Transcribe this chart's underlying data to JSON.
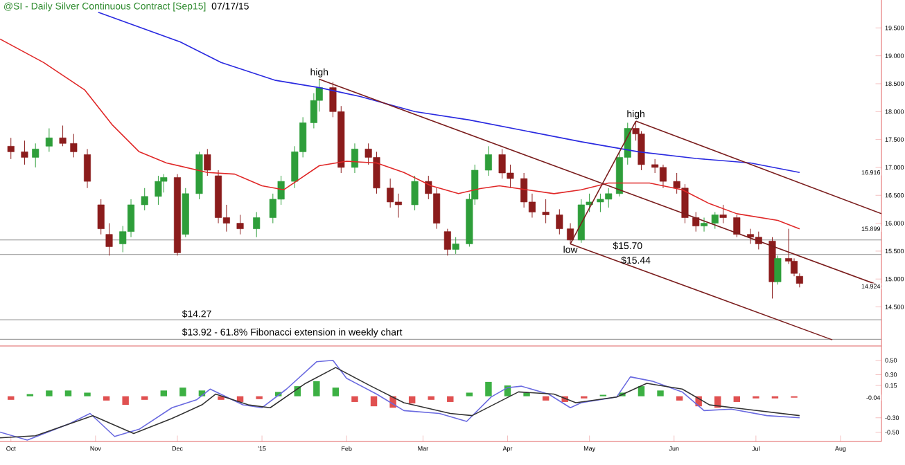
{
  "chart_data": [
    {
      "type": "candlestick",
      "title": "@SI - Daily  Silver Continuous Contract [Sep15]",
      "subtitle": "07/17/15",
      "x": [
        "2014-10-01",
        "2014-10-06",
        "2014-10-10",
        "2014-10-15",
        "2014-10-20",
        "2014-10-24",
        "2014-10-29",
        "2014-11-03",
        "2014-11-06",
        "2014-11-11",
        "2014-11-14",
        "2014-11-19",
        "2014-11-24",
        "2014-11-26",
        "2014-12-01",
        "2014-12-04",
        "2014-12-09",
        "2014-12-12",
        "2014-12-16",
        "2014-12-19",
        "2014-12-24",
        "2014-12-30",
        "2015-01-05",
        "2015-01-08",
        "2015-01-13",
        "2015-01-16",
        "2015-01-20",
        "2015-01-22",
        "2015-01-27",
        "2015-01-30",
        "2015-02-04",
        "2015-02-09",
        "2015-02-12",
        "2015-02-17",
        "2015-02-20",
        "2015-02-26",
        "2015-03-03",
        "2015-03-06",
        "2015-03-10",
        "2015-03-13",
        "2015-03-18",
        "2015-03-20",
        "2015-03-25",
        "2015-03-30",
        "2015-04-02",
        "2015-04-07",
        "2015-04-10",
        "2015-04-15",
        "2015-04-20",
        "2015-04-24",
        "2015-04-28",
        "2015-05-01",
        "2015-05-05",
        "2015-05-08",
        "2015-05-12",
        "2015-05-15",
        "2015-05-18",
        "2015-05-20",
        "2015-05-25",
        "2015-05-28",
        "2015-06-02",
        "2015-06-05",
        "2015-06-09",
        "2015-06-12",
        "2015-06-16",
        "2015-06-19",
        "2015-06-24",
        "2015-06-29",
        "2015-07-02",
        "2015-07-07",
        "2015-07-09",
        "2015-07-13",
        "2015-07-15",
        "2015-07-17"
      ],
      "ohlc": [
        [
          17.38,
          17.53,
          17.15,
          17.28
        ],
        [
          17.28,
          17.48,
          17.05,
          17.18
        ],
        [
          17.18,
          17.43,
          17.0,
          17.33
        ],
        [
          17.38,
          17.7,
          17.28,
          17.53
        ],
        [
          17.53,
          17.75,
          17.38,
          17.43
        ],
        [
          17.43,
          17.6,
          17.18,
          17.28
        ],
        [
          17.23,
          17.33,
          16.63,
          16.75
        ],
        [
          16.33,
          16.43,
          15.8,
          15.9
        ],
        [
          15.8,
          16.0,
          15.42,
          15.58
        ],
        [
          15.63,
          15.95,
          15.48,
          15.85
        ],
        [
          15.85,
          16.43,
          15.75,
          16.33
        ],
        [
          16.33,
          16.63,
          16.23,
          16.48
        ],
        [
          16.48,
          16.85,
          16.33,
          16.75
        ],
        [
          16.75,
          16.88,
          16.55,
          16.82
        ],
        [
          16.82,
          16.88,
          15.42,
          15.47
        ],
        [
          15.8,
          16.63,
          15.75,
          16.53
        ],
        [
          16.53,
          17.28,
          16.43,
          17.23
        ],
        [
          17.23,
          17.33,
          16.85,
          16.95
        ],
        [
          16.85,
          16.95,
          16.0,
          16.1
        ],
        [
          16.1,
          16.33,
          15.85,
          16.0
        ],
        [
          16.0,
          16.15,
          15.8,
          15.9
        ],
        [
          15.9,
          16.2,
          15.75,
          16.1
        ],
        [
          16.1,
          16.53,
          16.0,
          16.43
        ],
        [
          16.43,
          16.85,
          16.33,
          16.75
        ],
        [
          16.75,
          17.38,
          16.63,
          17.28
        ],
        [
          17.28,
          17.9,
          17.18,
          17.8
        ],
        [
          17.8,
          18.33,
          17.7,
          18.2
        ],
        [
          18.2,
          18.58,
          18.0,
          18.43
        ],
        [
          18.43,
          18.53,
          17.9,
          18.0
        ],
        [
          18.0,
          18.1,
          16.9,
          17.0
        ],
        [
          17.0,
          17.43,
          16.9,
          17.33
        ],
        [
          17.33,
          17.43,
          17.05,
          17.18
        ],
        [
          17.18,
          17.28,
          16.53,
          16.63
        ],
        [
          16.63,
          16.8,
          16.28,
          16.38
        ],
        [
          16.38,
          16.53,
          16.1,
          16.33
        ],
        [
          16.33,
          16.85,
          16.23,
          16.75
        ],
        [
          16.75,
          16.85,
          16.43,
          16.53
        ],
        [
          16.53,
          16.63,
          15.9,
          16.0
        ],
        [
          15.85,
          15.9,
          15.42,
          15.53
        ],
        [
          15.53,
          15.75,
          15.45,
          15.63
        ],
        [
          15.63,
          16.53,
          15.58,
          16.43
        ],
        [
          16.43,
          17.05,
          16.33,
          16.95
        ],
        [
          16.95,
          17.38,
          16.85,
          17.23
        ],
        [
          17.23,
          17.33,
          16.8,
          16.9
        ],
        [
          16.9,
          17.05,
          16.63,
          16.8
        ],
        [
          16.8,
          16.9,
          16.28,
          16.38
        ],
        [
          16.38,
          16.53,
          16.1,
          16.2
        ],
        [
          16.2,
          16.43,
          16.0,
          16.15
        ],
        [
          16.15,
          16.25,
          15.8,
          15.9
        ],
        [
          15.9,
          16.0,
          15.63,
          15.7
        ],
        [
          15.7,
          16.43,
          15.65,
          16.33
        ],
        [
          16.33,
          16.53,
          16.2,
          16.38
        ],
        [
          16.38,
          16.53,
          16.2,
          16.43
        ],
        [
          16.43,
          16.63,
          16.28,
          16.53
        ],
        [
          16.53,
          17.28,
          16.48,
          17.18
        ],
        [
          17.18,
          17.8,
          17.05,
          17.7
        ],
        [
          17.7,
          17.83,
          17.48,
          17.6
        ],
        [
          17.6,
          17.65,
          16.95,
          17.05
        ],
        [
          17.05,
          17.15,
          16.9,
          17.0
        ],
        [
          17.0,
          17.05,
          16.63,
          16.75
        ],
        [
          16.75,
          16.9,
          16.53,
          16.63
        ],
        [
          16.63,
          16.7,
          16.0,
          16.1
        ],
        [
          16.1,
          16.2,
          15.85,
          15.95
        ],
        [
          15.95,
          16.1,
          15.85,
          16.0
        ],
        [
          16.0,
          16.2,
          15.9,
          16.15
        ],
        [
          16.15,
          16.33,
          16.0,
          16.1
        ],
        [
          16.1,
          16.15,
          15.75,
          15.8
        ],
        [
          15.8,
          15.9,
          15.63,
          15.75
        ],
        [
          15.75,
          15.85,
          15.53,
          15.63
        ],
        [
          15.68,
          15.75,
          14.65,
          14.95
        ],
        [
          14.95,
          15.42,
          14.9,
          15.37
        ],
        [
          15.37,
          15.9,
          15.27,
          15.32
        ],
        [
          15.32,
          15.37,
          15.05,
          15.1
        ],
        [
          15.05,
          15.1,
          14.85,
          14.92
        ]
      ],
      "colors": [
        "#8b1c1c",
        "#8b1c1c",
        "#2e9e3a",
        "#2e9e3a",
        "#8b1c1c",
        "#8b1c1c",
        "#8b1c1c",
        "#8b1c1c",
        "#8b1c1c",
        "#2e9e3a",
        "#2e9e3a",
        "#2e9e3a",
        "#2e9e3a",
        "#2e9e3a",
        "#8b1c1c",
        "#2e9e3a",
        "#2e9e3a",
        "#8b1c1c",
        "#8b1c1c",
        "#8b1c1c",
        "#8b1c1c",
        "#2e9e3a",
        "#2e9e3a",
        "#2e9e3a",
        "#2e9e3a",
        "#2e9e3a",
        "#2e9e3a",
        "#2e9e3a",
        "#8b1c1c",
        "#8b1c1c",
        "#2e9e3a",
        "#8b1c1c",
        "#8b1c1c",
        "#8b1c1c",
        "#8b1c1c",
        "#2e9e3a",
        "#8b1c1c",
        "#8b1c1c",
        "#8b1c1c",
        "#2e9e3a",
        "#2e9e3a",
        "#2e9e3a",
        "#2e9e3a",
        "#8b1c1c",
        "#8b1c1c",
        "#8b1c1c",
        "#8b1c1c",
        "#8b1c1c",
        "#8b1c1c",
        "#8b1c1c",
        "#2e9e3a",
        "#2e9e3a",
        "#2e9e3a",
        "#2e9e3a",
        "#2e9e3a",
        "#2e9e3a",
        "#8b1c1c",
        "#8b1c1c",
        "#8b1c1c",
        "#8b1c1c",
        "#8b1c1c",
        "#8b1c1c",
        "#8b1c1c",
        "#2e9e3a",
        "#2e9e3a",
        "#8b1c1c",
        "#8b1c1c",
        "#8b1c1c",
        "#8b1c1c",
        "#8b1c1c",
        "#2e9e3a",
        "#8b1c1c",
        "#8b1c1c",
        "#8b1c1c"
      ],
      "series": [
        {
          "type": "line",
          "color": "#2a2ae0",
          "x": [
            "2014-11-02",
            "2014-12-02",
            "2014-12-17",
            "2015-01-06",
            "2015-01-22",
            "2015-02-06",
            "2015-02-26",
            "2015-03-18",
            "2015-04-08",
            "2015-04-28",
            "2015-05-19",
            "2015-06-09",
            "2015-06-29",
            "2015-07-17"
          ],
          "values": [
            19.78,
            19.25,
            18.88,
            18.56,
            18.43,
            18.27,
            18.0,
            17.85,
            17.65,
            17.46,
            17.28,
            17.16,
            17.08,
            16.91
          ]
        },
        {
          "type": "line",
          "color": "#e02828",
          "x": [
            "2014-09-27",
            "2014-10-13",
            "2014-10-28",
            "2014-11-07",
            "2014-11-17",
            "2014-11-27",
            "2014-12-12",
            "2014-12-22",
            "2015-01-01",
            "2015-01-09",
            "2015-01-22",
            "2015-02-01",
            "2015-02-12",
            "2015-02-22",
            "2015-03-04",
            "2015-03-14",
            "2015-03-22",
            "2015-03-29",
            "2015-04-08",
            "2015-04-18",
            "2015-04-28",
            "2015-05-08",
            "2015-05-23",
            "2015-06-04",
            "2015-06-14",
            "2015-06-24",
            "2015-07-09",
            "2015-07-17"
          ],
          "values": [
            19.3,
            18.88,
            18.39,
            17.77,
            17.28,
            17.08,
            16.91,
            16.88,
            16.67,
            16.6,
            17.03,
            17.11,
            17.08,
            16.91,
            16.67,
            16.53,
            16.62,
            16.67,
            16.6,
            16.53,
            16.6,
            16.72,
            16.72,
            16.6,
            16.35,
            16.17,
            16.05,
            15.9
          ]
        },
        {
          "type": "line",
          "color": "#7b1e1e",
          "x": [
            "2015-01-22",
            "2015-08-16"
          ],
          "values": [
            18.58,
            14.87
          ]
        },
        {
          "type": "line",
          "color": "#7b1e1e",
          "x": [
            "2015-05-18",
            "2015-08-16"
          ],
          "values": [
            17.83,
            16.17
          ]
        },
        {
          "type": "line",
          "color": "#7b1e1e",
          "x": [
            "2015-04-24",
            "2015-07-29"
          ],
          "values": [
            15.63,
            13.91
          ]
        },
        {
          "type": "line",
          "color": "#7b1e1e",
          "x": [
            "2015-04-24",
            "2015-05-18"
          ],
          "values": [
            15.63,
            17.83
          ]
        }
      ],
      "ref_lines": [
        {
          "axis": "y",
          "value": 15.7,
          "color": "#8c8c8c"
        },
        {
          "axis": "y",
          "value": 15.44,
          "color": "#8c8c8c"
        },
        {
          "axis": "y",
          "value": 14.27,
          "color": "#8c8c8c"
        },
        {
          "axis": "y",
          "value": 13.92,
          "color": "#8c8c8c"
        }
      ],
      "annotations": [
        {
          "text": "high",
          "x": "2015-01-22",
          "y": 18.58
        },
        {
          "text": "high",
          "x": "2015-05-18",
          "y": 17.83
        },
        {
          "text": "low",
          "x": "2015-04-24",
          "y": 15.63
        },
        {
          "text": "$15.70",
          "x": "2015-05-15",
          "y": 15.7
        },
        {
          "text": "$15.44",
          "x": "2015-05-18",
          "y": 15.44
        },
        {
          "text": "$14.27",
          "x": "2014-12-02",
          "y": 14.27
        },
        {
          "text": "$13.92 - 61.8% Fibonacci extension in weekly chart",
          "x": "2014-12-02",
          "y": 13.92
        },
        "16.916",
        "15.899",
        "14.924"
      ],
      "xlim": [
        "2014-09-27",
        "2015-08-16"
      ],
      "ylim": [
        13.8,
        20.0
      ],
      "yticks": [
        {
          "value": 14.5,
          "label": "14.500"
        },
        {
          "value": 15.0,
          "label": "15.000"
        },
        {
          "value": 15.5,
          "label": "15.500"
        },
        {
          "value": 16.0,
          "label": "16.000"
        },
        {
          "value": 16.5,
          "label": "16.500"
        },
        {
          "value": 17.0,
          "label": "17.000"
        },
        {
          "value": 17.5,
          "label": "17.500"
        },
        {
          "value": 18.0,
          "label": "18.000"
        },
        {
          "value": 18.5,
          "label": "18.500"
        },
        {
          "value": 19.0,
          "label": "19.000"
        },
        {
          "value": 19.5,
          "label": "19.500"
        }
      ],
      "tick_labels": "y"
    },
    {
      "type": "line",
      "series": [
        {
          "type": "bar",
          "x": [
            "2014-10-01",
            "2014-10-08",
            "2014-10-15",
            "2014-10-22",
            "2014-10-29",
            "2014-11-05",
            "2014-11-12",
            "2014-11-19",
            "2014-11-26",
            "2014-12-03",
            "2014-12-10",
            "2014-12-17",
            "2014-12-24",
            "2014-12-31",
            "2015-01-07",
            "2015-01-14",
            "2015-01-21",
            "2015-01-28",
            "2015-02-04",
            "2015-02-11",
            "2015-02-18",
            "2015-02-25",
            "2015-03-04",
            "2015-03-11",
            "2015-03-18",
            "2015-03-25",
            "2015-04-01",
            "2015-04-08",
            "2015-04-15",
            "2015-04-22",
            "2015-04-29",
            "2015-05-06",
            "2015-05-13",
            "2015-05-20",
            "2015-05-27",
            "2015-06-03",
            "2015-06-10",
            "2015-06-17",
            "2015-06-24",
            "2015-07-01",
            "2015-07-08",
            "2015-07-15"
          ],
          "values": [
            -0.05,
            0.03,
            0.08,
            0.08,
            0.05,
            -0.06,
            -0.12,
            -0.05,
            0.08,
            0.12,
            0.08,
            -0.05,
            -0.08,
            -0.04,
            0.06,
            0.14,
            0.21,
            0.12,
            -0.08,
            -0.14,
            -0.16,
            -0.1,
            -0.05,
            -0.08,
            0.05,
            0.2,
            0.15,
            0.05,
            -0.06,
            -0.08,
            -0.03,
            0.02,
            0.05,
            0.14,
            0.08,
            -0.06,
            -0.14,
            -0.16,
            -0.08,
            -0.03,
            -0.03,
            -0.02
          ],
          "colors": [
            "#e05050",
            "#3cb043",
            "#3cb043",
            "#3cb043",
            "#3cb043",
            "#e05050",
            "#e05050",
            "#e05050",
            "#3cb043",
            "#3cb043",
            "#3cb043",
            "#e05050",
            "#e05050",
            "#e05050",
            "#3cb043",
            "#3cb043",
            "#3cb043",
            "#3cb043",
            "#e05050",
            "#e05050",
            "#e05050",
            "#e05050",
            "#e05050",
            "#e05050",
            "#3cb043",
            "#3cb043",
            "#3cb043",
            "#3cb043",
            "#e05050",
            "#e05050",
            "#e05050",
            "#3cb043",
            "#3cb043",
            "#3cb043",
            "#3cb043",
            "#e05050",
            "#e05050",
            "#e05050",
            "#e05050",
            "#e05050",
            "#e05050",
            "#e05050"
          ]
        },
        {
          "type": "line",
          "color": "#6a6ae0",
          "x": [
            "2014-09-27",
            "2014-10-07",
            "2014-10-22",
            "2014-10-30",
            "2014-11-08",
            "2014-11-17",
            "2014-11-29",
            "2014-12-08",
            "2014-12-13",
            "2014-12-25",
            "2015-01-01",
            "2015-01-10",
            "2015-01-21",
            "2015-01-27",
            "2015-02-01",
            "2015-02-12",
            "2015-02-22",
            "2015-03-07",
            "2015-03-17",
            "2015-03-26",
            "2015-04-01",
            "2015-04-06",
            "2015-04-16",
            "2015-04-24",
            "2015-04-28",
            "2015-05-11",
            "2015-05-16",
            "2015-05-24",
            "2015-06-04",
            "2015-06-12",
            "2015-06-22",
            "2015-07-05",
            "2015-07-17"
          ],
          "values": [
            -0.5,
            -0.61,
            -0.39,
            -0.24,
            -0.56,
            -0.46,
            -0.16,
            -0.05,
            0.1,
            -0.12,
            -0.16,
            0.1,
            0.48,
            0.5,
            0.25,
            0.03,
            -0.2,
            -0.24,
            -0.35,
            -0.01,
            0.12,
            0.14,
            0.03,
            -0.16,
            -0.09,
            -0.01,
            0.27,
            0.21,
            0.06,
            -0.2,
            -0.18,
            -0.27,
            -0.3
          ]
        },
        {
          "type": "line",
          "color": "#333333",
          "x": [
            "2014-09-27",
            "2014-10-10",
            "2014-10-31",
            "2014-11-15",
            "2014-11-29",
            "2014-12-10",
            "2014-12-15",
            "2014-12-27",
            "2015-01-04",
            "2015-01-17",
            "2015-01-28",
            "2015-02-10",
            "2015-02-22",
            "2015-03-11",
            "2015-03-19",
            "2015-04-05",
            "2015-04-18",
            "2015-04-26",
            "2015-05-11",
            "2015-05-22",
            "2015-06-04",
            "2015-06-14",
            "2015-06-27",
            "2015-07-17"
          ],
          "values": [
            -0.58,
            -0.55,
            -0.27,
            -0.52,
            -0.31,
            -0.12,
            0.03,
            -0.12,
            -0.16,
            0.18,
            0.4,
            0.14,
            -0.09,
            -0.24,
            -0.27,
            0.06,
            0.03,
            -0.09,
            -0.01,
            0.18,
            0.1,
            -0.12,
            -0.18,
            -0.27
          ]
        }
      ],
      "annotations": [
        "-0.04"
      ],
      "xlim": [
        "2014-09-27",
        "2015-08-16"
      ],
      "ylim": [
        -0.63,
        0.7
      ],
      "xticks": [
        {
          "value": "2014-10-01",
          "label": "Oct"
        },
        {
          "value": "2014-11-01",
          "label": "Nov"
        },
        {
          "value": "2014-12-01",
          "label": "Dec"
        },
        {
          "value": "2015-01-01",
          "label": "'15"
        },
        {
          "value": "2015-02-01",
          "label": "Feb"
        },
        {
          "value": "2015-03-01",
          "label": "Mar"
        },
        {
          "value": "2015-04-01",
          "label": "Apr"
        },
        {
          "value": "2015-05-01",
          "label": "May"
        },
        {
          "value": "2015-06-01",
          "label": "Jun"
        },
        {
          "value": "2015-07-01",
          "label": "Jul"
        },
        {
          "value": "2015-08-01",
          "label": "Aug"
        }
      ],
      "yticks": [
        {
          "value": 0.5,
          "label": "0.50"
        },
        {
          "value": 0.3,
          "label": "0.30"
        },
        {
          "value": 0.15,
          "label": "0.15"
        },
        {
          "value": -0.3,
          "label": "-0.30"
        },
        {
          "value": -0.5,
          "label": "-0.50"
        }
      ]
    }
  ]
}
